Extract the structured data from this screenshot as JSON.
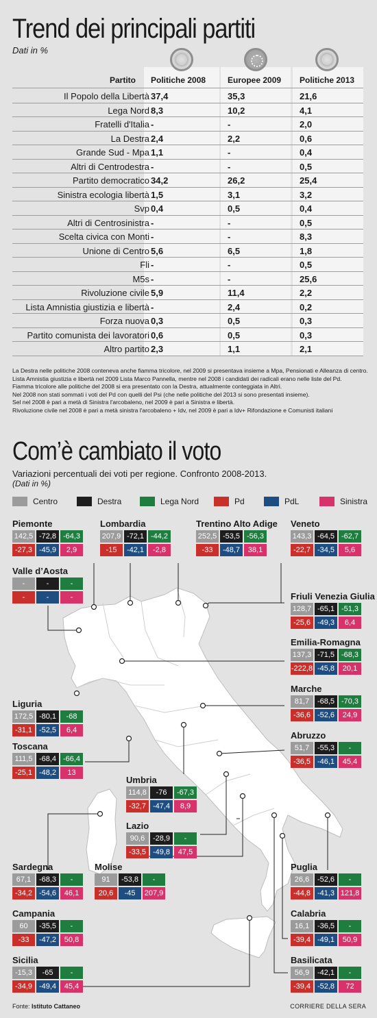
{
  "chart_data": [
    {
      "type": "table",
      "title": "Trend dei principali partiti",
      "subtitle": "Dati in %",
      "column_header": "Partito",
      "columns": [
        "Politiche 2008",
        "Europee 2009",
        "Politiche 2013"
      ],
      "rows": [
        {
          "label": "Il Popolo della Libertà",
          "values": [
            "37,4",
            "35,3",
            "21,6"
          ]
        },
        {
          "label": "Lega Nord",
          "values": [
            "8,3",
            "10,2",
            "4,1"
          ]
        },
        {
          "label": "Fratelli d'Italia",
          "values": [
            "-",
            "-",
            "2,0"
          ]
        },
        {
          "label": "La Destra",
          "values": [
            "2,4",
            "2,2",
            "0,6"
          ]
        },
        {
          "label": "Grande Sud - Mpa",
          "values": [
            "1,1",
            "-",
            "0,4"
          ]
        },
        {
          "label": "Altri di Centrodestra",
          "values": [
            "-",
            "-",
            "0,5"
          ]
        },
        {
          "label": "Partito democratico",
          "values": [
            "34,2",
            "26,2",
            "25,4"
          ]
        },
        {
          "label": "Sinistra ecologia libertà",
          "values": [
            "1,5",
            "3,1",
            "3,2"
          ]
        },
        {
          "label": "Svp",
          "values": [
            "0,4",
            "0,5",
            "0,4"
          ]
        },
        {
          "label": "Altri di Centrosinistra",
          "values": [
            "-",
            "-",
            "0,5"
          ]
        },
        {
          "label": "Scelta civica con Monti",
          "values": [
            "-",
            "-",
            "8,3"
          ]
        },
        {
          "label": "Unione di Centro",
          "values": [
            "5,6",
            "6,5",
            "1,8"
          ]
        },
        {
          "label": "Fli",
          "values": [
            "-",
            "-",
            "0,5"
          ]
        },
        {
          "label": "M5s",
          "values": [
            "-",
            "-",
            "25,6"
          ]
        },
        {
          "label": "Rivoluzione civile",
          "values": [
            "5,9",
            "11,4",
            "2,2"
          ]
        },
        {
          "label": "Lista Amnistia giustizia e libertà",
          "values": [
            "-",
            "2,4",
            "0,2"
          ]
        },
        {
          "label": "Forza nuova",
          "values": [
            "0,3",
            "0,5",
            "0,3"
          ]
        },
        {
          "label": "Partito comunista dei lavoratori",
          "values": [
            "0,6",
            "0,5",
            "0,3"
          ]
        },
        {
          "label": "Altro partito",
          "values": [
            "2,3",
            "1,1",
            "2,1"
          ]
        }
      ],
      "notes": [
        "La Destra nelle politiche 2008 conteneva anche fiamma tricolore, nel 2009 si presentava insieme a Mpa, Pensionati e Alleanza di centro.",
        "Lista Amnistia giustizia e libertà nel 2009 Lista Marco Pannella, mentre nel 2008 i candidati dei radicali erano nelle liste del Pd.",
        "Fiamma tricolore alle politiche del 2008 si era presentato con la Destra, attualmente conteggiata in Altri.",
        "Nel 2008 non stati sommati i voti del Pd con quelli del Psi (che nelle politiche del 2013 si sono presentati insieme).",
        "Sel nel 2008 è pari a metà di Sinistra l'arcobaleno, nel 2009 è pari a Sinistra e libertà.",
        "Rivoluzione civile nel 2008 è pari a metà sinistra l'arcobaleno + Idv, nel 2009 è pari a Idv+ Rifondazione e Comunisti italiani"
      ]
    },
    {
      "type": "table",
      "title": "Com’è cambiato il voto",
      "subtitle": "Variazioni percentuali dei voti per regione. Confronto 2008-2013.",
      "subtitle2": "(Dati in %)",
      "legend": [
        {
          "key": "centro",
          "name": "Centro",
          "color": "#9b9b9b"
        },
        {
          "key": "destra",
          "name": "Destra",
          "color": "#1d1d1d"
        },
        {
          "key": "lega",
          "name": "Lega Nord",
          "color": "#1f7d3f"
        },
        {
          "key": "pd",
          "name": "Pd",
          "color": "#c9302c"
        },
        {
          "key": "pdl",
          "name": "PdL",
          "color": "#1e4d82"
        },
        {
          "key": "sin",
          "name": "Sinistra",
          "color": "#d8326a"
        }
      ],
      "regions": [
        {
          "name": "Piemonte",
          "values": [
            "142,5",
            "-72,8",
            "-64,3",
            "-27,3",
            "-45,9",
            "2,9"
          ]
        },
        {
          "name": "Lombardia",
          "values": [
            "207,9",
            "-72,1",
            "-44,2",
            "-15",
            "-42,1",
            "-2,8"
          ]
        },
        {
          "name": "Trentino Alto Adige",
          "values": [
            "252,5",
            "-53,5",
            "-56,3",
            "-33",
            "-48,7",
            "38,1"
          ]
        },
        {
          "name": "Veneto",
          "values": [
            "143,3",
            "-64,5",
            "-62,7",
            "-22,7",
            "-34,5",
            "5,6"
          ]
        },
        {
          "name": "Valle d’Aosta",
          "values": [
            "-",
            "-",
            "-",
            "-",
            "-",
            "-"
          ]
        },
        {
          "name": "Friuli Venezia Giulia",
          "values": [
            "128,7",
            "-65,1",
            "-51,3",
            "-25,6",
            "-49,3",
            "6,4"
          ]
        },
        {
          "name": "Emilia-Romagna",
          "values": [
            "137,3",
            "-71,5",
            "-68,3",
            "-222,8",
            "-45,8",
            "20,1"
          ]
        },
        {
          "name": "Marche",
          "values": [
            "81,7",
            "-68,5",
            "-70,3",
            "-36,6",
            "-52,6",
            "24,9"
          ]
        },
        {
          "name": "Liguria",
          "values": [
            "172,5",
            "-80,1",
            "-68",
            "-31,1",
            "-52,5",
            "6,4"
          ]
        },
        {
          "name": "Toscana",
          "values": [
            "111,5",
            "-68,4",
            "-66,4",
            "-25,1",
            "-48,2",
            "13"
          ]
        },
        {
          "name": "Abruzzo",
          "values": [
            "51,7",
            "-55,3",
            "-",
            "-36,5",
            "-46,1",
            "45,4"
          ]
        },
        {
          "name": "Umbria",
          "values": [
            "114,8",
            "-76",
            "-67,3",
            "-32,7",
            "-47,4",
            "8,9"
          ]
        },
        {
          "name": "Lazio",
          "values": [
            "90,6",
            "-28,9",
            "-",
            "-33,5",
            "-49,8",
            "47,5"
          ]
        },
        {
          "name": "Sardegna",
          "values": [
            "67,1",
            "-68,3",
            "-",
            "-34,2",
            "-54,6",
            "46,1"
          ]
        },
        {
          "name": "Molise",
          "values": [
            "91",
            "-53,8",
            "-",
            "20,6",
            "-45",
            "207,9"
          ]
        },
        {
          "name": "Puglia",
          "values": [
            "26,6",
            "-52,6",
            "-",
            "-44,8",
            "-41,3",
            "121,8"
          ]
        },
        {
          "name": "Campania",
          "values": [
            "60",
            "-35,5",
            "-",
            "-33",
            "-47,2",
            "50,8"
          ]
        },
        {
          "name": "Calabria",
          "values": [
            "16,1",
            "-36,5",
            "-",
            "-39,4",
            "-49,1",
            "50,9"
          ]
        },
        {
          "name": "Sicilia",
          "values": [
            "-15,3",
            "-65",
            "-",
            "-34,9",
            "-49,4",
            "45,4"
          ]
        },
        {
          "name": "Basilicata",
          "values": [
            "56,9",
            "-42,1",
            "-",
            "-39,4",
            "-52,8",
            "72"
          ]
        }
      ]
    }
  ],
  "footer": {
    "source_label": "Fonte:",
    "source": "Istituto Cattaneo",
    "publisher": "CORRIERE DELLA SERA"
  }
}
